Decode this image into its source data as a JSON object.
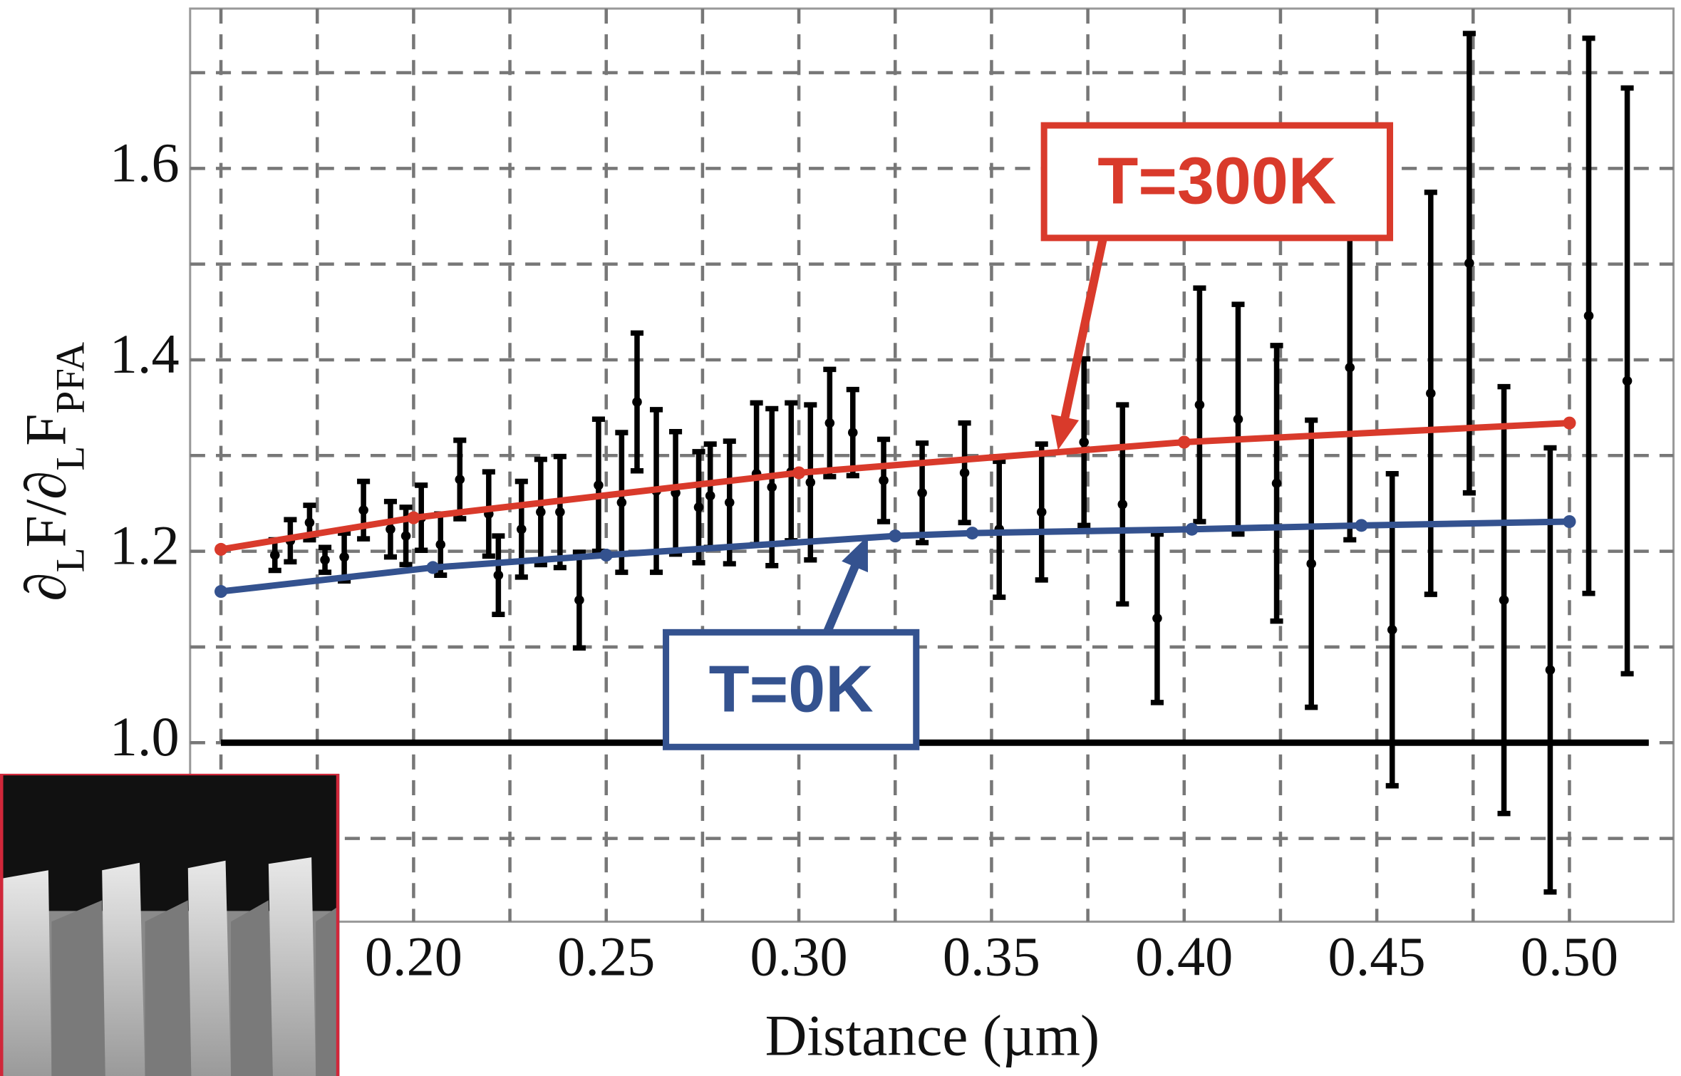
{
  "chart_data": {
    "type": "errorbar",
    "x_label": "Distance (µm)",
    "y_label": [
      "∂",
      "L",
      "F/∂",
      "L",
      "F",
      "PFA"
    ],
    "xlim": [
      0.142,
      0.527
    ],
    "ylim": [
      0.813,
      1.767
    ],
    "xticks": [
      {
        "value": 0.2,
        "label": "0.20"
      },
      {
        "value": 0.25,
        "label": "0.25"
      },
      {
        "value": 0.3,
        "label": "0.30"
      },
      {
        "value": 0.35,
        "label": "0.35"
      },
      {
        "value": 0.4,
        "label": "0.40"
      },
      {
        "value": 0.45,
        "label": "0.45"
      },
      {
        "value": 0.5,
        "label": "0.50"
      }
    ],
    "yticks": [
      {
        "value": 1,
        "label": "1.0"
      },
      1.2,
      1.4,
      1.6
    ],
    "xgrid": [
      0.15,
      0.175,
      0.2,
      0.225,
      0.25,
      0.275,
      0.3,
      0.325,
      0.35,
      0.375,
      0.4,
      0.425,
      0.45,
      0.475,
      0.5
    ],
    "ygrid": [
      0.9,
      1.0,
      1.1,
      1.2,
      1.3,
      1.4,
      1.5,
      1.6,
      1.7
    ],
    "grid": true,
    "reference_line": 1,
    "data": {
      "color": "#000000",
      "x": [
        0.164,
        0.168,
        0.173,
        0.177,
        0.182,
        0.187,
        0.194,
        0.198,
        0.202,
        0.207,
        0.212,
        0.2195,
        0.222,
        0.228,
        0.233,
        0.238,
        0.243,
        0.248,
        0.254,
        0.258,
        0.263,
        0.268,
        0.274,
        0.277,
        0.282,
        0.289,
        0.293,
        0.298,
        0.303,
        0.308,
        0.314,
        0.322,
        0.332,
        0.343,
        0.352,
        0.363,
        0.374,
        0.384,
        0.393,
        0.404,
        0.414,
        0.424,
        0.433,
        0.443,
        0.454,
        0.464,
        0.474,
        0.483,
        0.495,
        0.505,
        0.515
      ],
      "y": [
        1.196,
        1.211,
        1.23,
        1.191,
        1.194,
        1.243,
        1.223,
        1.216,
        1.235,
        1.207,
        1.275,
        1.239,
        1.175,
        1.223,
        1.241,
        1.241,
        1.149,
        1.269,
        1.251,
        1.356,
        1.263,
        1.261,
        1.246,
        1.258,
        1.251,
        1.281,
        1.267,
        1.283,
        1.272,
        1.334,
        1.324,
        1.274,
        1.261,
        1.282,
        1.223,
        1.241,
        1.314,
        1.249,
        1.13,
        1.353,
        1.338,
        1.271,
        1.187,
        1.392,
        1.118,
        1.365,
        1.501,
        1.149,
        1.076,
        1.446,
        1.378
      ],
      "errors": [
        0.016,
        0.022,
        0.018,
        0.013,
        0.025,
        0.03,
        0.029,
        0.03,
        0.034,
        0.032,
        0.041,
        0.044,
        0.041,
        0.05,
        0.055,
        0.058,
        0.05,
        0.069,
        0.073,
        0.072,
        0.085,
        0.064,
        0.058,
        0.054,
        0.064,
        0.074,
        0.082,
        0.072,
        0.081,
        0.056,
        0.045,
        0.043,
        0.052,
        0.052,
        0.071,
        0.071,
        0.087,
        0.104,
        0.088,
        0.122,
        0.12,
        0.144,
        0.15,
        0.18,
        0.163,
        0.21,
        0.24,
        0.223,
        0.232,
        0.29,
        0.306
      ]
    },
    "fits": [
      {
        "label": "T=300K",
        "color": "#d93a2b",
        "x": [
          0.15,
          0.2,
          0.3,
          0.4,
          0.5
        ],
        "y": [
          1.202,
          1.235,
          1.282,
          1.314,
          1.334
        ]
      },
      {
        "label": "T=0K",
        "color": "#34528f",
        "x": [
          0.15,
          0.205,
          0.25,
          0.325,
          0.345,
          0.402,
          0.446,
          0.5
        ],
        "y": [
          1.158,
          1.183,
          1.196,
          1.216,
          1.219,
          1.223,
          1.227,
          1.231
        ]
      }
    ]
  }
}
